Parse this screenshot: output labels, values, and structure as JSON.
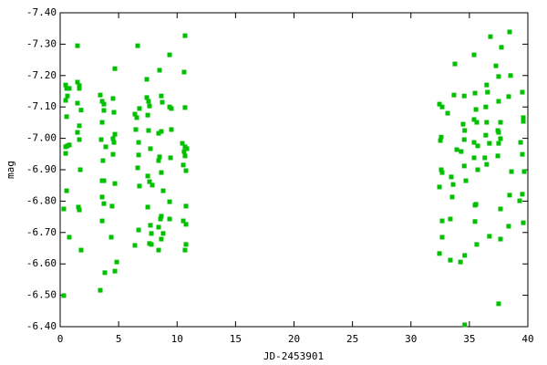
{
  "chart_data": {
    "type": "scatter",
    "xlabel": "JD-2453901",
    "ylabel": "mag",
    "color": "#00c000",
    "xlim": [
      0,
      40
    ],
    "xticks": [
      0,
      5,
      10,
      15,
      20,
      25,
      30,
      35,
      40
    ],
    "ylim": [
      -6.4,
      -7.4
    ],
    "yticks": [
      {
        "value": -7.4,
        "label": "-7.40"
      },
      {
        "value": -7.3,
        "label": "-7.30"
      },
      {
        "value": -7.2,
        "label": "-7.20"
      },
      {
        "value": -7.1,
        "label": "-7.10"
      },
      {
        "value": -7.0,
        "label": "-7.00"
      },
      {
        "value": -6.9,
        "label": "-6.90"
      },
      {
        "value": -6.8,
        "label": "-6.80"
      },
      {
        "value": -6.7,
        "label": "-6.70"
      },
      {
        "value": -6.6,
        "label": "-6.60"
      },
      {
        "value": -6.5,
        "label": "-6.50"
      },
      {
        "value": -6.4,
        "label": "-6.40"
      }
    ],
    "x": [
      0.31,
      0.31,
      0.47,
      0.55,
      0.47,
      0.62,
      0.55,
      0.47,
      0.62,
      0.78,
      0.47,
      0.55,
      0.78,
      0.78,
      1.48,
      1.48,
      1.64,
      1.64,
      1.48,
      1.64,
      1.48,
      1.64,
      1.72,
      1.56,
      1.64,
      1.79,
      1.79,
      3.43,
      3.59,
      3.74,
      3.74,
      3.59,
      3.51,
      3.9,
      3.66,
      3.59,
      3.74,
      3.59,
      3.74,
      3.59,
      3.43,
      3.82,
      4.37,
      4.52,
      4.6,
      4.68,
      4.68,
      4.52,
      4.6,
      4.52,
      4.68,
      4.44,
      4.84,
      4.68,
      6.63,
      6.39,
      6.55,
      6.78,
      6.47,
      6.71,
      6.71,
      6.63,
      6.78,
      6.39,
      6.71,
      7.41,
      7.41,
      7.56,
      7.64,
      7.49,
      7.56,
      7.72,
      7.49,
      7.64,
      7.88,
      7.49,
      7.72,
      7.64,
      7.8,
      7.8,
      8.5,
      8.65,
      8.73,
      8.42,
      8.65,
      8.5,
      8.42,
      8.65,
      8.81,
      8.58,
      8.65,
      8.42,
      8.81,
      8.65,
      8.42,
      9.36,
      9.36,
      9.51,
      9.51,
      9.44,
      9.36,
      9.36,
      10.68,
      10.6,
      10.68,
      10.45,
      10.68,
      10.6,
      10.68,
      10.84,
      10.53,
      10.76,
      10.53,
      10.76,
      10.76,
      10.76,
      10.68,
      32.44,
      32.67,
      32.59,
      32.52,
      32.59,
      32.67,
      32.44,
      32.67,
      32.67,
      32.44,
      33.14,
      33.45,
      33.61,
      33.53,
      33.37,
      33.37,
      33.76,
      33.68,
      33.92,
      34.24,
      34.56,
      34.46,
      34.6,
      34.56,
      34.3,
      34.56,
      34.7,
      34.6,
      34.6,
      35.4,
      35.48,
      35.56,
      35.4,
      35.63,
      35.4,
      35.71,
      35.4,
      35.71,
      35.48,
      35.56,
      35.63,
      35.48,
      36.48,
      36.55,
      36.4,
      36.48,
      36.4,
      36.71,
      36.32,
      36.48,
      36.71,
      36.8,
      37.27,
      37.5,
      37.5,
      37.66,
      37.43,
      37.5,
      37.66,
      37.5,
      37.74,
      37.43,
      37.66,
      37.66,
      37.5,
      38.44,
      38.52,
      38.36,
      38.6,
      38.44,
      38.36,
      39.53,
      39.61,
      39.61,
      39.38,
      39.53,
      39.69,
      39.53,
      39.3,
      39.61
    ],
    "values": [
      -6.775,
      -6.499,
      -7.17,
      -7.159,
      -7.121,
      -7.135,
      -7.069,
      -6.973,
      -6.976,
      -6.979,
      -6.952,
      -6.833,
      -6.685,
      -7.159,
      -7.295,
      -7.179,
      -7.168,
      -7.159,
      -7.112,
      -7.04,
      -7.019,
      -6.996,
      -6.9,
      -6.781,
      -6.772,
      -6.644,
      -7.09,
      -7.138,
      -7.118,
      -7.109,
      -7.089,
      -7.051,
      -6.996,
      -6.973,
      -6.929,
      -6.865,
      -6.865,
      -6.813,
      -6.792,
      -6.737,
      -6.516,
      -6.572,
      -6.685,
      -7.127,
      -7.083,
      -7.222,
      -7.013,
      -6.999,
      -6.987,
      -6.949,
      -6.856,
      -6.784,
      -6.606,
      -6.577,
      -7.295,
      -7.077,
      -7.066,
      -7.095,
      -7.028,
      -6.987,
      -6.947,
      -6.906,
      -6.848,
      -6.659,
      -6.708,
      -7.188,
      -7.13,
      -7.118,
      -7.103,
      -7.074,
      -7.025,
      -6.967,
      -6.88,
      -6.862,
      -6.851,
      -6.781,
      -6.723,
      -6.665,
      -6.662,
      -6.697,
      -7.217,
      -7.135,
      -7.115,
      -7.016,
      -7.022,
      -6.941,
      -6.929,
      -6.891,
      -6.833,
      -6.743,
      -6.752,
      -6.717,
      -6.697,
      -6.679,
      -6.644,
      -7.266,
      -7.1,
      -7.095,
      -7.028,
      -6.938,
      -6.798,
      -6.743,
      -7.327,
      -7.211,
      -7.098,
      -6.984,
      -6.973,
      -6.958,
      -6.944,
      -6.967,
      -6.915,
      -6.897,
      -6.737,
      -6.784,
      -6.726,
      -6.662,
      -6.644,
      -7.109,
      -7.1,
      -7.004,
      -6.993,
      -6.9,
      -6.891,
      -6.845,
      -6.737,
      -6.685,
      -6.633,
      -7.08,
      -6.877,
      -6.853,
      -6.813,
      -6.743,
      -6.612,
      -7.237,
      -7.138,
      -6.964,
      -6.606,
      -7.135,
      -7.045,
      -7.025,
      -6.996,
      -6.958,
      -6.912,
      -6.865,
      -6.627,
      -6.406,
      -7.266,
      -7.144,
      -7.092,
      -7.06,
      -7.051,
      -6.987,
      -6.976,
      -6.938,
      -6.9,
      -6.787,
      -6.79,
      -6.662,
      -6.735,
      -7.17,
      -7.147,
      -7.1,
      -7.051,
      -7.01,
      -6.984,
      -6.938,
      -6.917,
      -6.688,
      -7.324,
      -7.231,
      -7.197,
      -7.118,
      -7.051,
      -7.025,
      -7.019,
      -6.999,
      -6.984,
      -7.29,
      -6.944,
      -6.775,
      -6.679,
      -6.473,
      -7.339,
      -7.2,
      -7.133,
      -6.894,
      -6.819,
      -6.72,
      -7.147,
      -7.066,
      -7.054,
      -6.987,
      -6.949,
      -6.894,
      -6.822,
      -6.801,
      -6.731
    ]
  }
}
